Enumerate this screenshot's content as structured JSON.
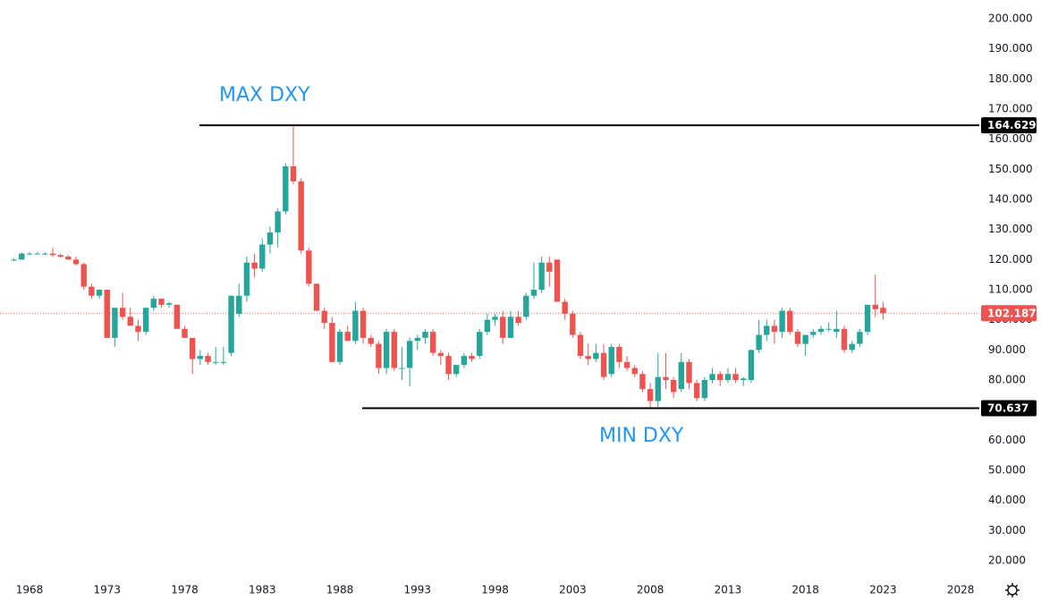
{
  "chart_data": {
    "type": "candlestick",
    "annotations": [
      "MAX DXY",
      "MIN DXY"
    ],
    "levels": [
      164.629,
      70.637
    ],
    "colors": {
      "up": "#26a69a",
      "down": "#ef5350",
      "level": "#000000"
    },
    "x": [
      1967.0,
      1967.5,
      1968.0,
      1968.5,
      1969.0,
      1969.5,
      1970.0,
      1970.5,
      1971.0,
      1971.5,
      1972.0,
      1972.5,
      1973.0,
      1973.5,
      1974.0,
      1974.5,
      1975.0,
      1975.5,
      1976.0,
      1976.5,
      1977.0,
      1977.5,
      1978.0,
      1978.5,
      1979.0,
      1979.5,
      1980.0,
      1980.5,
      1981.0,
      1981.5,
      1982.0,
      1982.5,
      1983.0,
      1983.5,
      1984.0,
      1984.5,
      1985.0,
      1985.5,
      1986.0,
      1986.5,
      1987.0,
      1987.5,
      1988.0,
      1988.5,
      1989.0,
      1989.5,
      1990.0,
      1990.5,
      1991.0,
      1991.5,
      1992.0,
      1992.5,
      1993.0,
      1993.5,
      1994.0,
      1994.5,
      1995.0,
      1995.5,
      1996.0,
      1996.5,
      1997.0,
      1997.5,
      1998.0,
      1998.5,
      1999.0,
      1999.5,
      2000.0,
      2000.5,
      2001.0,
      2001.5,
      2002.0,
      2002.5,
      2003.0,
      2003.5,
      2004.0,
      2004.5,
      2005.0,
      2005.5,
      2006.0,
      2006.5,
      2007.0,
      2007.5,
      2008.0,
      2008.5,
      2009.0,
      2009.5,
      2010.0,
      2010.5,
      2011.0,
      2011.5,
      2012.0,
      2012.5,
      2013.0,
      2013.5,
      2014.0,
      2014.5,
      2015.0,
      2015.5,
      2016.0,
      2016.5,
      2017.0,
      2017.5,
      2018.0,
      2018.5,
      2019.0,
      2019.5,
      2020.0,
      2020.5,
      2021.0,
      2021.5,
      2022.0,
      2022.5,
      2023.0
    ],
    "open": [
      120,
      120,
      122,
      122,
      122,
      122,
      121.5,
      121,
      120,
      118.5,
      111,
      108,
      110,
      94,
      104,
      101,
      98,
      96,
      104,
      107,
      105,
      105,
      97,
      94,
      87,
      88,
      86,
      86,
      89,
      102,
      108,
      119,
      117,
      125,
      129,
      136,
      151,
      146,
      123,
      112,
      103,
      99,
      86,
      96,
      93,
      103,
      94,
      92,
      84,
      96,
      84,
      84,
      93,
      94,
      96,
      89,
      88,
      82,
      85,
      88,
      88,
      96,
      100,
      101,
      94,
      101,
      101,
      108,
      110,
      119,
      120,
      106,
      102,
      95,
      88,
      87,
      89,
      82,
      91,
      86,
      84,
      82,
      77,
      73,
      81,
      80,
      77,
      86,
      79,
      74,
      80,
      82,
      80,
      82,
      80,
      80,
      90,
      95,
      98,
      96,
      103,
      96,
      92,
      95,
      96,
      97,
      96,
      97,
      90,
      92,
      96,
      105,
      104
    ],
    "high": [
      120.5,
      122.5,
      122.5,
      122.5,
      122.5,
      124,
      122,
      121.5,
      121,
      119,
      112,
      110,
      110,
      104,
      109,
      104,
      100,
      104,
      108,
      107,
      106,
      105,
      98,
      94,
      90,
      89,
      91,
      91,
      108,
      112,
      121,
      122,
      127,
      131,
      137,
      152,
      164.629,
      147,
      124,
      112,
      104,
      101,
      97,
      98,
      106,
      104,
      95,
      93,
      97,
      97,
      91,
      94,
      95,
      97,
      97,
      90,
      89,
      85,
      89,
      89,
      97,
      102,
      102,
      103,
      103,
      103,
      109,
      119,
      121,
      121,
      120,
      107,
      103,
      96,
      92,
      92,
      92,
      92,
      92,
      88,
      85,
      83,
      79,
      89,
      89,
      81,
      89,
      87,
      80,
      81,
      84,
      83,
      84,
      84,
      81,
      90,
      100,
      100,
      100,
      104,
      104,
      97,
      95,
      97,
      98,
      99,
      103,
      98,
      93,
      97,
      105,
      115,
      106
    ],
    "low": [
      119.5,
      120,
      121.5,
      121.8,
      121.5,
      121,
      120.5,
      120,
      118,
      110,
      107,
      107,
      94,
      91,
      100,
      98,
      93,
      95,
      103,
      104,
      104,
      97,
      94,
      82,
      85,
      85,
      85,
      85,
      88,
      101,
      106,
      114,
      116,
      122,
      124,
      135,
      145,
      122,
      111,
      103,
      97,
      86,
      85,
      93,
      92,
      92,
      91,
      82,
      82,
      83,
      80,
      78,
      90,
      92,
      88,
      85,
      80,
      81,
      84,
      86,
      87,
      95,
      98,
      92,
      94,
      98,
      100,
      107,
      109,
      111,
      106,
      100,
      94,
      87,
      85,
      86,
      80,
      81,
      84,
      83,
      81,
      76,
      71,
      71,
      77,
      74,
      76,
      77,
      73,
      73,
      79,
      78,
      79,
      79,
      78,
      79,
      89,
      93,
      92,
      94,
      95,
      91,
      88,
      94,
      95,
      96,
      94,
      89,
      89,
      91,
      95,
      101,
      100
    ],
    "close": [
      120,
      122,
      122,
      122,
      122,
      121.5,
      121,
      120,
      118.5,
      111,
      108,
      110,
      94,
      104,
      101,
      98,
      96,
      104,
      107,
      105,
      105.5,
      97,
      94,
      87,
      88,
      86,
      86,
      86,
      108,
      108,
      119,
      117,
      125,
      129,
      136,
      151,
      146,
      123,
      112,
      103,
      99,
      86,
      96,
      93,
      103,
      94,
      92,
      84,
      96,
      84,
      84,
      93,
      94,
      96,
      89,
      88,
      82,
      85,
      88,
      87,
      96,
      100,
      101,
      94,
      101,
      99,
      108,
      110,
      119,
      116,
      106,
      102,
      95,
      88,
      87,
      89,
      81,
      91,
      86,
      84,
      82,
      77,
      73,
      81,
      80,
      76,
      86,
      79,
      74,
      80,
      82,
      80,
      82,
      80,
      80.5,
      90,
      95,
      98,
      96,
      103,
      96,
      92,
      95,
      96,
      97,
      97,
      97,
      90,
      92,
      96,
      105,
      103.5,
      102.187
    ],
    "xlim": [
      1966.1,
      2029.2
    ],
    "ylim": [
      16.14,
      206.24
    ],
    "xticks": [
      1968,
      1973,
      1978,
      1983,
      1988,
      1993,
      1998,
      2003,
      2008,
      2013,
      2018,
      2023,
      2028
    ],
    "yticks": [
      {
        "value": 20,
        "label": "20.000"
      },
      {
        "value": 30,
        "label": "30.000"
      },
      {
        "value": 40,
        "label": "40.000"
      },
      {
        "value": 50,
        "label": "50.000"
      },
      {
        "value": 60,
        "label": "60.000"
      },
      {
        "value": 70,
        "label": "70.000"
      },
      {
        "value": 80,
        "label": "80.000"
      },
      {
        "value": 90,
        "label": "90.000"
      },
      {
        "value": 100,
        "label": "100.000"
      },
      {
        "value": 110,
        "label": "110.000"
      },
      {
        "value": 120,
        "label": "120.000"
      },
      {
        "value": 130,
        "label": "130.000"
      },
      {
        "value": 140,
        "label": "140.000"
      },
      {
        "value": 150,
        "label": "150.000"
      },
      {
        "value": 160,
        "label": "160.000"
      },
      {
        "value": 170,
        "label": "170.000"
      },
      {
        "value": 180,
        "label": "180.000"
      },
      {
        "value": 190,
        "label": "190.000"
      },
      {
        "value": 200,
        "label": "200.000"
      }
    ]
  }
}
